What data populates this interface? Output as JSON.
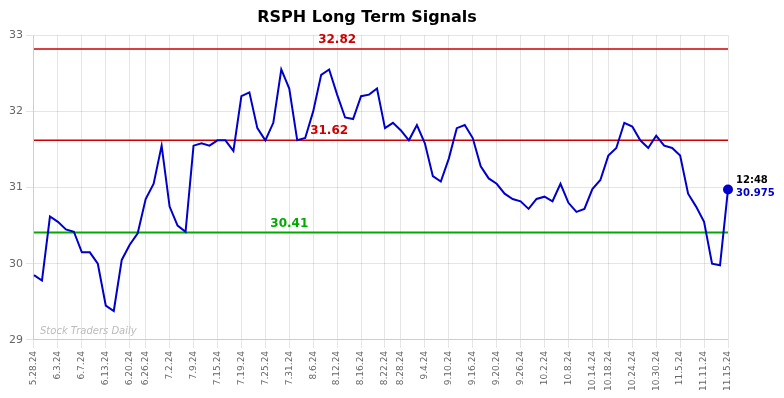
{
  "chart_data": {
    "type": "line",
    "title": "RSPH Long Term Signals",
    "categories": [
      "5.28.24",
      null,
      null,
      "6.3.24",
      null,
      null,
      "6.7.24",
      null,
      null,
      "6.13.24",
      null,
      null,
      "6.20.24",
      null,
      "6.26.24",
      null,
      null,
      "7.2.24",
      null,
      null,
      "7.9.24",
      null,
      null,
      "7.15.24",
      null,
      null,
      "7.19.24",
      null,
      null,
      "7.25.24",
      null,
      null,
      "7.31.24",
      null,
      null,
      "8.6.24",
      null,
      null,
      "8.12.24",
      null,
      null,
      "8.16.24",
      null,
      null,
      "8.22.24",
      null,
      "8.28.24",
      null,
      null,
      "9.4.24",
      null,
      null,
      "9.10.24",
      null,
      null,
      "9.16.24",
      null,
      null,
      "9.20.24",
      null,
      null,
      "9.26.24",
      null,
      null,
      "10.2.24",
      null,
      null,
      "10.8.24",
      null,
      null,
      "10.14.24",
      null,
      "10.18.24",
      null,
      null,
      "10.24.24",
      null,
      null,
      "10.30.24",
      null,
      null,
      "11.5.24",
      null,
      null,
      "11.11.24",
      null,
      null,
      "11.15.24"
    ],
    "series": [
      {
        "color": "#0000cc",
        "values": [
          29.85,
          29.78,
          30.62,
          30.55,
          30.45,
          30.42,
          30.15,
          30.15,
          30.0,
          29.45,
          29.38,
          30.05,
          30.25,
          30.4,
          30.85,
          31.05,
          31.55,
          30.75,
          30.5,
          30.42,
          31.55,
          31.58,
          31.55,
          31.62,
          31.62,
          31.48,
          32.2,
          32.25,
          31.78,
          31.62,
          31.85,
          32.55,
          32.3,
          31.62,
          31.65,
          32.0,
          32.48,
          32.55,
          32.22,
          31.92,
          31.9,
          32.2,
          32.22,
          32.3,
          31.78,
          31.85,
          31.75,
          31.62,
          31.82,
          31.58,
          31.15,
          31.08,
          31.38,
          31.78,
          31.82,
          31.65,
          31.28,
          31.12,
          31.05,
          30.92,
          30.85,
          30.82,
          30.72,
          30.85,
          30.88,
          30.82,
          31.05,
          30.8,
          30.68,
          30.72,
          30.98,
          31.1,
          31.42,
          31.52,
          31.85,
          31.8,
          31.62,
          31.52,
          31.68,
          31.55,
          31.52,
          31.42,
          30.92,
          30.75,
          30.55,
          30.0,
          29.98,
          30.975
        ]
      }
    ],
    "reference_lines": [
      {
        "value": 32.82,
        "label": "32.82",
        "color": "#cc0000"
      },
      {
        "value": 31.62,
        "label": "31.62",
        "color": "#cc0000"
      },
      {
        "value": 30.41,
        "label": "30.41",
        "color": "#00aa00"
      }
    ],
    "last_point_labels": [
      "12:48",
      "30.975"
    ],
    "watermark": "Stock Traders Daily",
    "ylim": [
      29,
      33
    ],
    "yticks": [
      29,
      30,
      31,
      32,
      33
    ],
    "grid": true
  }
}
